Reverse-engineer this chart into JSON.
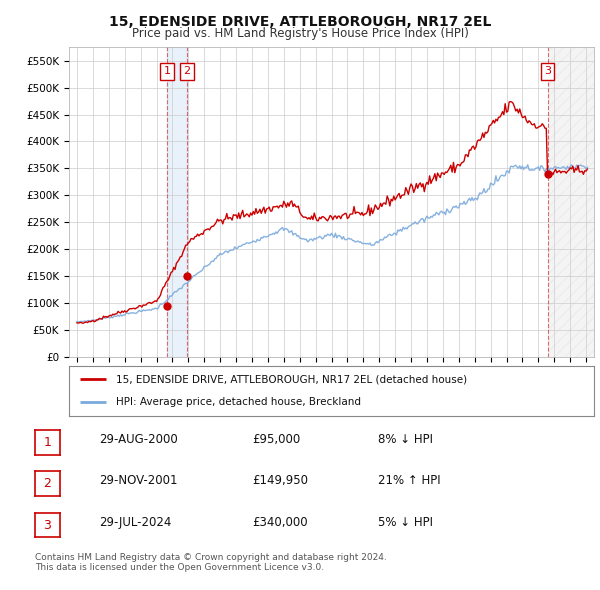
{
  "title": "15, EDENSIDE DRIVE, ATTLEBOROUGH, NR17 2EL",
  "subtitle": "Price paid vs. HM Land Registry's House Price Index (HPI)",
  "legend_line1": "15, EDENSIDE DRIVE, ATTLEBOROUGH, NR17 2EL (detached house)",
  "legend_line2": "HPI: Average price, detached house, Breckland",
  "footnote1": "Contains HM Land Registry data © Crown copyright and database right 2024.",
  "footnote2": "This data is licensed under the Open Government Licence v3.0.",
  "table": [
    {
      "num": "1",
      "date": "29-AUG-2000",
      "price": "£95,000",
      "hpi": "8% ↓ HPI"
    },
    {
      "num": "2",
      "date": "29-NOV-2001",
      "price": "£149,950",
      "hpi": "21% ↑ HPI"
    },
    {
      "num": "3",
      "date": "29-JUL-2024",
      "price": "£340,000",
      "hpi": "5% ↓ HPI"
    }
  ],
  "sale_dates": [
    2000.66,
    2001.91,
    2024.58
  ],
  "sale_prices": [
    95000,
    149950,
    340000
  ],
  "hpi_color": "#7aaadd",
  "price_color": "#cc0000",
  "grid_color": "#cccccc",
  "background_color": "#ffffff",
  "plot_bg_color": "#ffffff",
  "ylim": [
    0,
    575000
  ],
  "yticks": [
    0,
    50000,
    100000,
    150000,
    200000,
    250000,
    300000,
    350000,
    400000,
    450000,
    500000,
    550000
  ],
  "ytick_labels": [
    "£0",
    "£50K",
    "£100K",
    "£150K",
    "£200K",
    "£250K",
    "£300K",
    "£350K",
    "£400K",
    "£450K",
    "£500K",
    "£550K"
  ],
  "xlim_start": 1994.5,
  "xlim_end": 2027.5,
  "xticks": [
    1995,
    1996,
    1997,
    1998,
    1999,
    2000,
    2001,
    2002,
    2003,
    2004,
    2005,
    2006,
    2007,
    2008,
    2009,
    2010,
    2011,
    2012,
    2013,
    2014,
    2015,
    2016,
    2017,
    2018,
    2019,
    2020,
    2021,
    2022,
    2023,
    2024,
    2025,
    2026,
    2027
  ]
}
